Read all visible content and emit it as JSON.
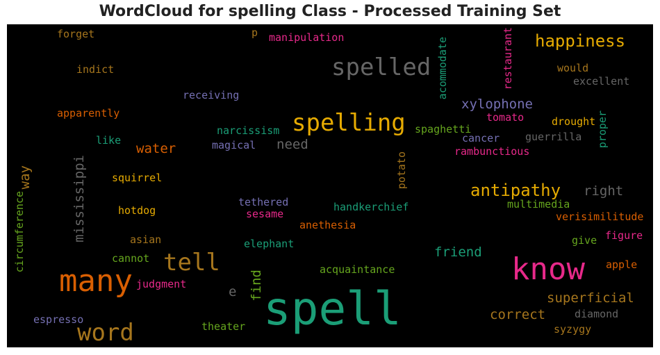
{
  "title": "WordCloud for spelling Class - Processed Training Set",
  "colors": {
    "background": "#000000",
    "title": "#222222"
  },
  "words": [
    {
      "text": "forget",
      "color": "#a6761d"
    },
    {
      "text": "p",
      "color": "#a6761d"
    },
    {
      "text": "manipulation",
      "color": "#e7298a"
    },
    {
      "text": "acommodate",
      "color": "#1b9e77"
    },
    {
      "text": "restaurant",
      "color": "#e7298a"
    },
    {
      "text": "happiness",
      "color": "#e6ab02"
    },
    {
      "text": "spelled",
      "color": "#666666"
    },
    {
      "text": "indict",
      "color": "#a6761d"
    },
    {
      "text": "would",
      "color": "#a6761d"
    },
    {
      "text": "excellent",
      "color": "#666666"
    },
    {
      "text": "receiving",
      "color": "#7570b3"
    },
    {
      "text": "xylophone",
      "color": "#7570b3"
    },
    {
      "text": "apparently",
      "color": "#d95f02"
    },
    {
      "text": "spelling",
      "color": "#e6ab02"
    },
    {
      "text": "tomato",
      "color": "#e7298a"
    },
    {
      "text": "drought",
      "color": "#e6ab02"
    },
    {
      "text": "proper",
      "color": "#1b9e77"
    },
    {
      "text": "narcissism",
      "color": "#1b9e77"
    },
    {
      "text": "spaghetti",
      "color": "#66a61e"
    },
    {
      "text": "cancer",
      "color": "#7570b3"
    },
    {
      "text": "guerrilla",
      "color": "#666666"
    },
    {
      "text": "like",
      "color": "#1b9e77"
    },
    {
      "text": "magical",
      "color": "#7570b3"
    },
    {
      "text": "need",
      "color": "#666666"
    },
    {
      "text": "water",
      "color": "#d95f02"
    },
    {
      "text": "rambunctious",
      "color": "#e7298a"
    },
    {
      "text": "way",
      "color": "#a6761d"
    },
    {
      "text": "mississippi",
      "color": "#666666"
    },
    {
      "text": "potato",
      "color": "#a6761d"
    },
    {
      "text": "squirrel",
      "color": "#e6ab02"
    },
    {
      "text": "antipathy",
      "color": "#e6ab02"
    },
    {
      "text": "right",
      "color": "#666666"
    },
    {
      "text": "circumference",
      "color": "#66a61e"
    },
    {
      "text": "tethered",
      "color": "#7570b3"
    },
    {
      "text": "handkerchief",
      "color": "#1b9e77"
    },
    {
      "text": "multimedia",
      "color": "#66a61e"
    },
    {
      "text": "hotdog",
      "color": "#e6ab02"
    },
    {
      "text": "sesame",
      "color": "#e7298a"
    },
    {
      "text": "verisimilitude",
      "color": "#d95f02"
    },
    {
      "text": "anethesia",
      "color": "#d95f02"
    },
    {
      "text": "figure",
      "color": "#e7298a"
    },
    {
      "text": "asian",
      "color": "#a6761d"
    },
    {
      "text": "elephant",
      "color": "#1b9e77"
    },
    {
      "text": "give",
      "color": "#66a61e"
    },
    {
      "text": "friend",
      "color": "#1b9e77"
    },
    {
      "text": "cannot",
      "color": "#66a61e"
    },
    {
      "text": "tell",
      "color": "#a6761d"
    },
    {
      "text": "know",
      "color": "#e7298a"
    },
    {
      "text": "apple",
      "color": "#d95f02"
    },
    {
      "text": "many",
      "color": "#d95f02"
    },
    {
      "text": "acquaintance",
      "color": "#66a61e"
    },
    {
      "text": "judgment",
      "color": "#e7298a"
    },
    {
      "text": "find",
      "color": "#66a61e"
    },
    {
      "text": "e",
      "color": "#666666"
    },
    {
      "text": "spell",
      "color": "#1b9e77"
    },
    {
      "text": "superficial",
      "color": "#a6761d"
    },
    {
      "text": "correct",
      "color": "#a6761d"
    },
    {
      "text": "diamond",
      "color": "#666666"
    },
    {
      "text": "word",
      "color": "#a6761d"
    },
    {
      "text": "espresso",
      "color": "#7570b3"
    },
    {
      "text": "theater",
      "color": "#66a61e"
    },
    {
      "text": "syzygy",
      "color": "#a6761d"
    }
  ]
}
